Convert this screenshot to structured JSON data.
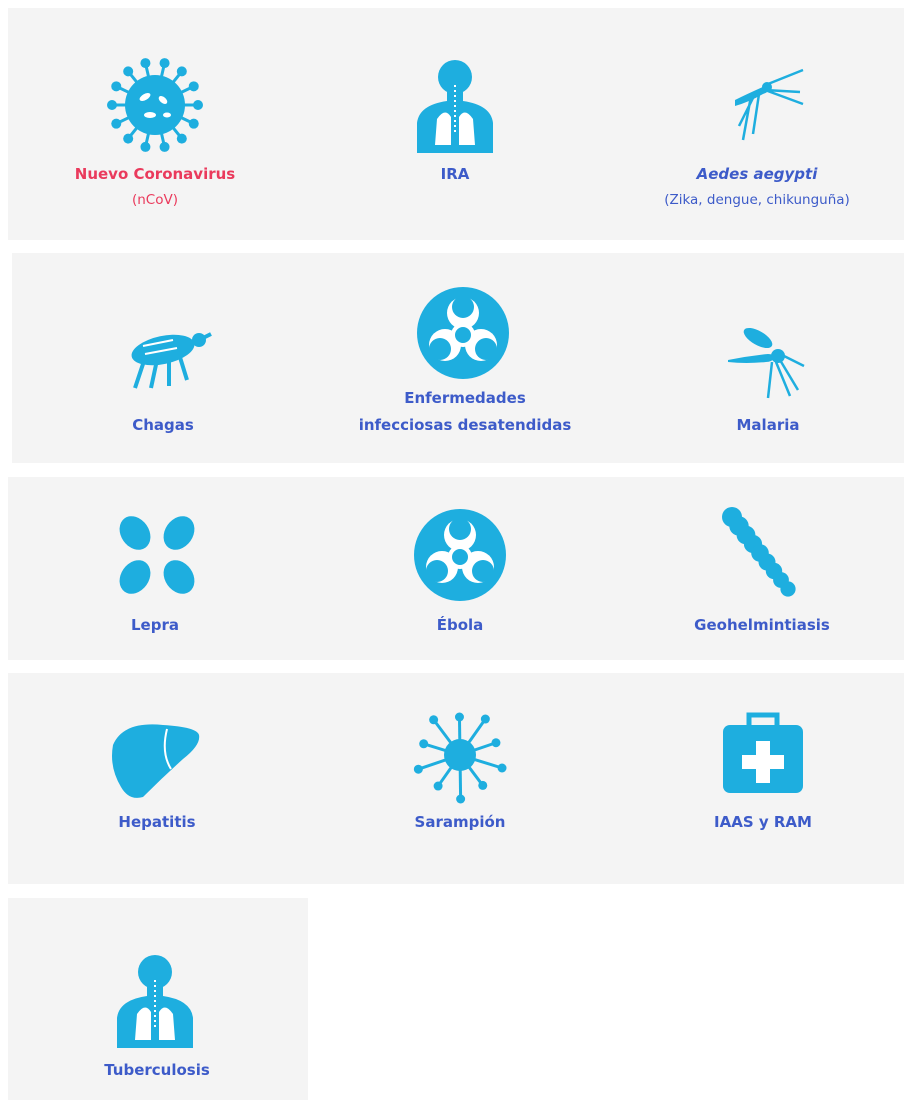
{
  "rows": [
    {
      "items": [
        {
          "label": "Nuevo Coronavirus",
          "sublabel": "(nCoV)"
        },
        {
          "label": "IRA"
        },
        {
          "label": "Aedes aegypti",
          "sublabel": "(Zika, dengue, chikunguña)"
        }
      ]
    },
    {
      "items": [
        {
          "label": "Chagas"
        },
        {
          "lines": [
            "Enfermedades",
            "infecciosas desatendidas"
          ]
        },
        {
          "label": "Malaria"
        }
      ]
    },
    {
      "items": [
        {
          "label": "Lepra"
        },
        {
          "label": "Ébola"
        },
        {
          "label": "Geohelmintiasis"
        }
      ]
    },
    {
      "items": [
        {
          "label": "Hepatitis"
        },
        {
          "label": "Sarampión"
        },
        {
          "label": "IAAS y RAM"
        }
      ]
    },
    {
      "items": [
        {
          "label": "Tuberculosis"
        }
      ]
    }
  ]
}
